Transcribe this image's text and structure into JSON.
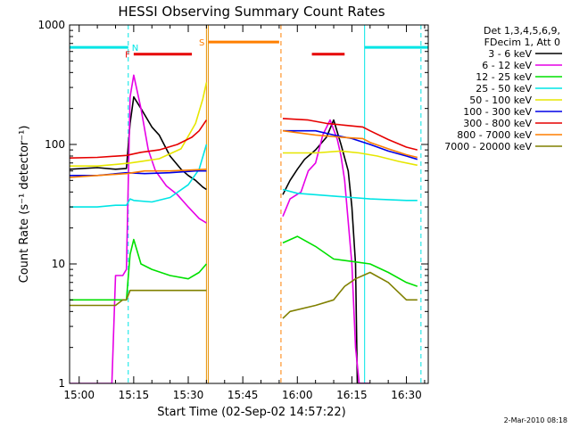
{
  "chart_data": {
    "type": "line",
    "title": "HESSI Observing Summary Count Rates",
    "xlabel": "Start Time (02-Sep-02 14:57:22)",
    "ylabel": "Count Rate (s⁻¹ detector⁻¹)",
    "xlim": [
      "14:57:22",
      "16:36:00"
    ],
    "ylim": [
      1,
      1000
    ],
    "yscale": "log",
    "x_ticks": [
      "15:00",
      "15:15",
      "15:30",
      "15:45",
      "16:00",
      "16:15",
      "16:30"
    ],
    "y_ticks": [
      "1",
      "10",
      "100",
      "1000"
    ],
    "legend_header": [
      "Det 1,3,4,5,6,9,",
      "FDecim 1, Att 0"
    ],
    "legend_position": "right",
    "footer_date": "2-Mar-2010 08:18",
    "annotations": [
      {
        "label": "N",
        "type": "night",
        "color": "#00e5e5",
        "bars": [
          [
            "14:57:22",
            "15:13:30"
          ],
          [
            "16:18:30",
            "16:36:00"
          ]
        ],
        "y": 650
      },
      {
        "label": "F",
        "type": "flare",
        "color": "#e60000",
        "bars": [
          [
            "15:15:00",
            "15:31:00"
          ],
          [
            "16:04:00",
            "16:13:00"
          ]
        ],
        "y": 570
      },
      {
        "label": "S",
        "type": "SAA",
        "color": "#ff7f00",
        "bars": [
          [
            "15:35:30",
            "15:55:00"
          ]
        ],
        "y": 720
      }
    ],
    "markers": [
      {
        "time": "15:13:30",
        "color": "#00e5e5",
        "style": "dashed"
      },
      {
        "time": "15:35:00",
        "color": "#e69000",
        "style": "solid"
      },
      {
        "time": "15:35:30",
        "color": "#e69000",
        "style": "solid"
      },
      {
        "time": "15:55:30",
        "color": "#ff7f00",
        "style": "dashed"
      },
      {
        "time": "16:18:30",
        "color": "#00e5e5",
        "style": "solid"
      },
      {
        "time": "16:34:00",
        "color": "#00e5e5",
        "style": "dashed"
      }
    ],
    "series": [
      {
        "name": "3 - 6 keV",
        "color": "#000000",
        "points": [
          [
            "14:57:22",
            62
          ],
          [
            "15:05",
            64
          ],
          [
            "15:10",
            62
          ],
          [
            "15:13",
            63
          ],
          [
            "15:14",
            150
          ],
          [
            "15:15",
            250
          ],
          [
            "15:17",
            200
          ],
          [
            "15:20",
            140
          ],
          [
            "15:22",
            120
          ],
          [
            "15:25",
            80
          ],
          [
            "15:28",
            62
          ],
          [
            "15:30",
            55
          ],
          [
            "15:32",
            50
          ],
          [
            "15:34",
            44
          ],
          [
            "15:35",
            42
          ],
          null,
          [
            "15:56",
            38
          ],
          [
            "15:58",
            50
          ],
          [
            "16:00",
            62
          ],
          [
            "16:02",
            75
          ],
          [
            "16:05",
            90
          ],
          [
            "16:08",
            115
          ],
          [
            "16:10",
            160
          ],
          [
            "16:12",
            100
          ],
          [
            "16:14",
            60
          ],
          [
            "16:15",
            30
          ],
          [
            "16:16",
            10
          ],
          [
            "16:16:30",
            1
          ],
          [
            "16:20",
            1
          ],
          null
        ]
      },
      {
        "name": "6 - 12 keV",
        "color": "#e600e6",
        "points": [
          [
            "14:57:22",
            1
          ],
          [
            "15:09",
            1
          ],
          [
            "15:10",
            8
          ],
          [
            "15:12",
            8
          ],
          [
            "15:13",
            9
          ],
          [
            "15:14",
            250
          ],
          [
            "15:15",
            380
          ],
          [
            "15:17",
            200
          ],
          [
            "15:19",
            90
          ],
          [
            "15:21",
            60
          ],
          [
            "15:24",
            45
          ],
          [
            "15:27",
            38
          ],
          [
            "15:30",
            30
          ],
          [
            "15:33",
            24
          ],
          [
            "15:35",
            22
          ],
          null,
          [
            "15:56",
            25
          ],
          [
            "15:58",
            35
          ],
          [
            "16:01",
            40
          ],
          [
            "16:03",
            60
          ],
          [
            "16:05",
            70
          ],
          [
            "16:07",
            120
          ],
          [
            "16:09",
            160
          ],
          [
            "16:11",
            110
          ],
          [
            "16:12",
            80
          ],
          [
            "16:13",
            50
          ],
          [
            "16:15",
            10
          ],
          [
            "16:16",
            2
          ],
          [
            "16:17",
            1
          ],
          [
            "16:20",
            1
          ],
          null
        ]
      },
      {
        "name": "12 - 25 keV",
        "color": "#00e000",
        "points": [
          [
            "14:57:22",
            5
          ],
          [
            "15:05",
            5
          ],
          [
            "15:10",
            5
          ],
          [
            "15:13",
            5
          ],
          [
            "15:14",
            12
          ],
          [
            "15:15",
            16
          ],
          [
            "15:17",
            10
          ],
          [
            "15:20",
            9
          ],
          [
            "15:25",
            8
          ],
          [
            "15:30",
            7.5
          ],
          [
            "15:33",
            8.5
          ],
          [
            "15:35",
            10
          ],
          null,
          [
            "15:56",
            15
          ],
          [
            "16:00",
            17
          ],
          [
            "16:05",
            14
          ],
          [
            "16:10",
            11
          ],
          [
            "16:15",
            10.5
          ],
          [
            "16:20",
            10
          ],
          [
            "16:25",
            8.5
          ],
          [
            "16:30",
            7
          ],
          [
            "16:33",
            6.5
          ]
        ]
      },
      {
        "name": "25 - 50 keV",
        "color": "#00e5e5",
        "points": [
          [
            "14:57:22",
            30
          ],
          [
            "15:05",
            30
          ],
          [
            "15:10",
            31
          ],
          [
            "15:13",
            31
          ],
          [
            "15:14",
            35
          ],
          [
            "15:15",
            34
          ],
          [
            "15:20",
            33
          ],
          [
            "15:25",
            36
          ],
          [
            "15:30",
            46
          ],
          [
            "15:33",
            62
          ],
          [
            "15:35",
            100
          ],
          null,
          [
            "15:56",
            42
          ],
          [
            "16:00",
            39
          ],
          [
            "16:10",
            37
          ],
          [
            "16:15",
            36
          ],
          [
            "16:20",
            35
          ],
          [
            "16:30",
            34
          ],
          [
            "16:33",
            34
          ]
        ]
      },
      {
        "name": "50 - 100 keV",
        "color": "#e6e600",
        "points": [
          [
            "14:57:22",
            66
          ],
          [
            "15:05",
            66
          ],
          [
            "15:10",
            68
          ],
          [
            "15:14",
            70
          ],
          [
            "15:17",
            72
          ],
          [
            "15:22",
            76
          ],
          [
            "15:28",
            92
          ],
          [
            "15:32",
            150
          ],
          [
            "15:34",
            240
          ],
          [
            "15:35",
            330
          ],
          null,
          [
            "15:56",
            85
          ],
          [
            "16:05",
            85
          ],
          [
            "16:12",
            88
          ],
          [
            "16:17",
            85
          ],
          [
            "16:22",
            80
          ],
          [
            "16:28",
            72
          ],
          [
            "16:33",
            67
          ]
        ]
      },
      {
        "name": "100 - 300 keV",
        "color": "#0000e6",
        "points": [
          [
            "14:57:22",
            55
          ],
          [
            "15:05",
            55
          ],
          [
            "15:13",
            58
          ],
          [
            "15:18",
            57
          ],
          [
            "15:25",
            58
          ],
          [
            "15:32",
            60
          ],
          [
            "15:35",
            60
          ],
          null,
          [
            "15:56",
            130
          ],
          [
            "16:05",
            130
          ],
          [
            "16:10",
            120
          ],
          [
            "16:15",
            112
          ],
          [
            "16:20",
            100
          ],
          [
            "16:25",
            88
          ],
          [
            "16:30",
            80
          ],
          [
            "16:33",
            75
          ]
        ]
      },
      {
        "name": "300 - 800 keV",
        "color": "#e60000",
        "points": [
          [
            "14:57:22",
            77
          ],
          [
            "15:05",
            78
          ],
          [
            "15:13",
            81
          ],
          [
            "15:17",
            86
          ],
          [
            "15:22",
            90
          ],
          [
            "15:27",
            100
          ],
          [
            "15:31",
            115
          ],
          [
            "15:33",
            130
          ],
          [
            "15:35",
            160
          ],
          null,
          [
            "15:56",
            165
          ],
          [
            "16:03",
            160
          ],
          [
            "16:08",
            150
          ],
          [
            "16:13",
            145
          ],
          [
            "16:18",
            140
          ],
          [
            "16:20",
            130
          ],
          [
            "16:25",
            110
          ],
          [
            "16:30",
            95
          ],
          [
            "16:33",
            90
          ]
        ]
      },
      {
        "name": "800 - 7000 keV",
        "color": "#ff7f00",
        "points": [
          [
            "14:57:22",
            53
          ],
          [
            "15:05",
            55
          ],
          [
            "15:13",
            57
          ],
          [
            "15:18",
            60
          ],
          [
            "15:25",
            60
          ],
          [
            "15:30",
            61
          ],
          [
            "15:35",
            62
          ],
          null,
          [
            "15:56",
            130
          ],
          [
            "16:05",
            120
          ],
          [
            "16:12",
            115
          ],
          [
            "16:18",
            112
          ],
          [
            "16:20",
            104
          ],
          [
            "16:25",
            92
          ],
          [
            "16:30",
            82
          ],
          [
            "16:33",
            78
          ]
        ]
      },
      {
        "name": "7000 - 20000 keV",
        "color": "#808000",
        "points": [
          [
            "14:57:22",
            4.5
          ],
          [
            "15:10",
            4.5
          ],
          [
            "15:12",
            5
          ],
          [
            "15:13",
            5
          ],
          [
            "15:14",
            6
          ],
          [
            "15:18",
            6
          ],
          [
            "15:25",
            6
          ],
          [
            "15:30",
            6
          ],
          [
            "15:35",
            6
          ],
          null,
          [
            "15:56",
            3.5
          ],
          [
            "15:58",
            4
          ],
          [
            "16:05",
            4.5
          ],
          [
            "16:10",
            5
          ],
          [
            "16:13",
            6.5
          ],
          [
            "16:16",
            7.5
          ],
          [
            "16:20",
            8.5
          ],
          [
            "16:25",
            7
          ],
          [
            "16:30",
            5
          ],
          [
            "16:33",
            5
          ]
        ]
      }
    ]
  }
}
